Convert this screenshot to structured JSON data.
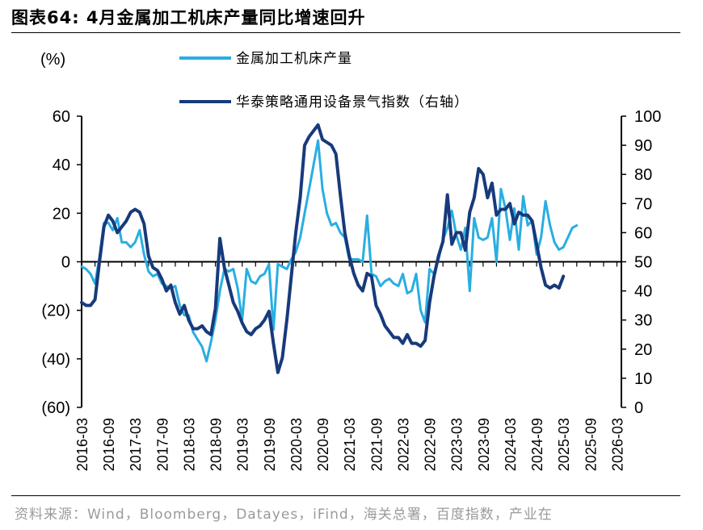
{
  "title": "图表64:  4月金属加工机床产量同比增速回升",
  "source": "资料来源：Wind，Bloomberg，Datayes，iFind，海关总署，百度指数，产业在",
  "chart_data": {
    "type": "line",
    "left_axis_unit": "(%)",
    "left_axis": {
      "range": [
        -60,
        60
      ],
      "ticks": [
        60,
        40,
        20,
        0,
        -20,
        -40,
        -60
      ],
      "tick_labels": [
        "60",
        "40",
        "20",
        "0",
        "(20)",
        "(40)",
        "(60)"
      ]
    },
    "right_axis": {
      "range": [
        0,
        100
      ],
      "ticks": [
        100,
        90,
        80,
        70,
        60,
        50,
        40,
        30,
        20,
        10,
        0
      ],
      "tick_labels": [
        "100",
        "90",
        "80",
        "70",
        "60",
        "50",
        "40",
        "30",
        "20",
        "10",
        "0"
      ]
    },
    "x_range": [
      "2016-03",
      "2026-04"
    ],
    "x_tick_labels": [
      "2016-03",
      "2016-09",
      "2017-03",
      "2017-09",
      "2018-03",
      "2018-09",
      "2019-03",
      "2019-09",
      "2020-03",
      "2020-09",
      "2021-03",
      "2021-09",
      "2022-03",
      "2022-09",
      "2023-03",
      "2023-09",
      "2024-03",
      "2024-09",
      "2025-03",
      "2025-09",
      "2026-03"
    ],
    "grid": false,
    "legend_placement": "top",
    "series": [
      {
        "name": "金属加工机床产量",
        "axis": "left",
        "color": "#29aee1",
        "start": "2016-03",
        "values": [
          -2,
          -3,
          -5,
          -9,
          2,
          16,
          16,
          13,
          18,
          8,
          8,
          6,
          8,
          13,
          3,
          -4,
          -6,
          -5,
          -9,
          -10,
          -11,
          -10,
          -18,
          -22,
          -22,
          -29,
          -32,
          -35,
          -41,
          -33,
          -24,
          -12,
          -3,
          -4,
          -3,
          -11,
          -24,
          -3,
          -8,
          -9,
          -6,
          -5,
          -1,
          -28,
          -1,
          -2,
          -3,
          1,
          4,
          10,
          20,
          30,
          40,
          50,
          30,
          20,
          15,
          16,
          12,
          10,
          1,
          1,
          1,
          0,
          19,
          -5,
          -6,
          -10,
          -8,
          -7,
          -9,
          -10,
          -5,
          -13,
          -12,
          -5,
          -20,
          -25,
          -3,
          -5,
          1,
          9,
          14,
          21,
          11,
          5,
          14,
          -12,
          18,
          10,
          9,
          10,
          18,
          0,
          30,
          22,
          9,
          22,
          5,
          27,
          15,
          17,
          3,
          10,
          25,
          15,
          8,
          5,
          6,
          10,
          14,
          15
        ]
      },
      {
        "name": "华泰策略通用设备景气指数（右轴）",
        "axis": "right",
        "color": "#173a7c",
        "start": "2016-03",
        "values": [
          36,
          35,
          35,
          37,
          50,
          62,
          66,
          64,
          60,
          62,
          64,
          67,
          68,
          67,
          63,
          52,
          48,
          47,
          44,
          40,
          42,
          36,
          32,
          35,
          30,
          27,
          27,
          28,
          26,
          25,
          34,
          58,
          48,
          42,
          36,
          33,
          29,
          26,
          25,
          27,
          28,
          30,
          33,
          22,
          12,
          17,
          30,
          45,
          60,
          72,
          90,
          93,
          95,
          97,
          92,
          91,
          90,
          87,
          73,
          60,
          52,
          46,
          42,
          40,
          46,
          45,
          35,
          32,
          28,
          26,
          24,
          24,
          22,
          25,
          22,
          22,
          21,
          23,
          36,
          45,
          52,
          57,
          73,
          56,
          60,
          60,
          54,
          67,
          72,
          82,
          80,
          72,
          77,
          66,
          68,
          68,
          70,
          63,
          67,
          66,
          66,
          64,
          56,
          48,
          42,
          41,
          42,
          41,
          45
        ]
      }
    ]
  }
}
